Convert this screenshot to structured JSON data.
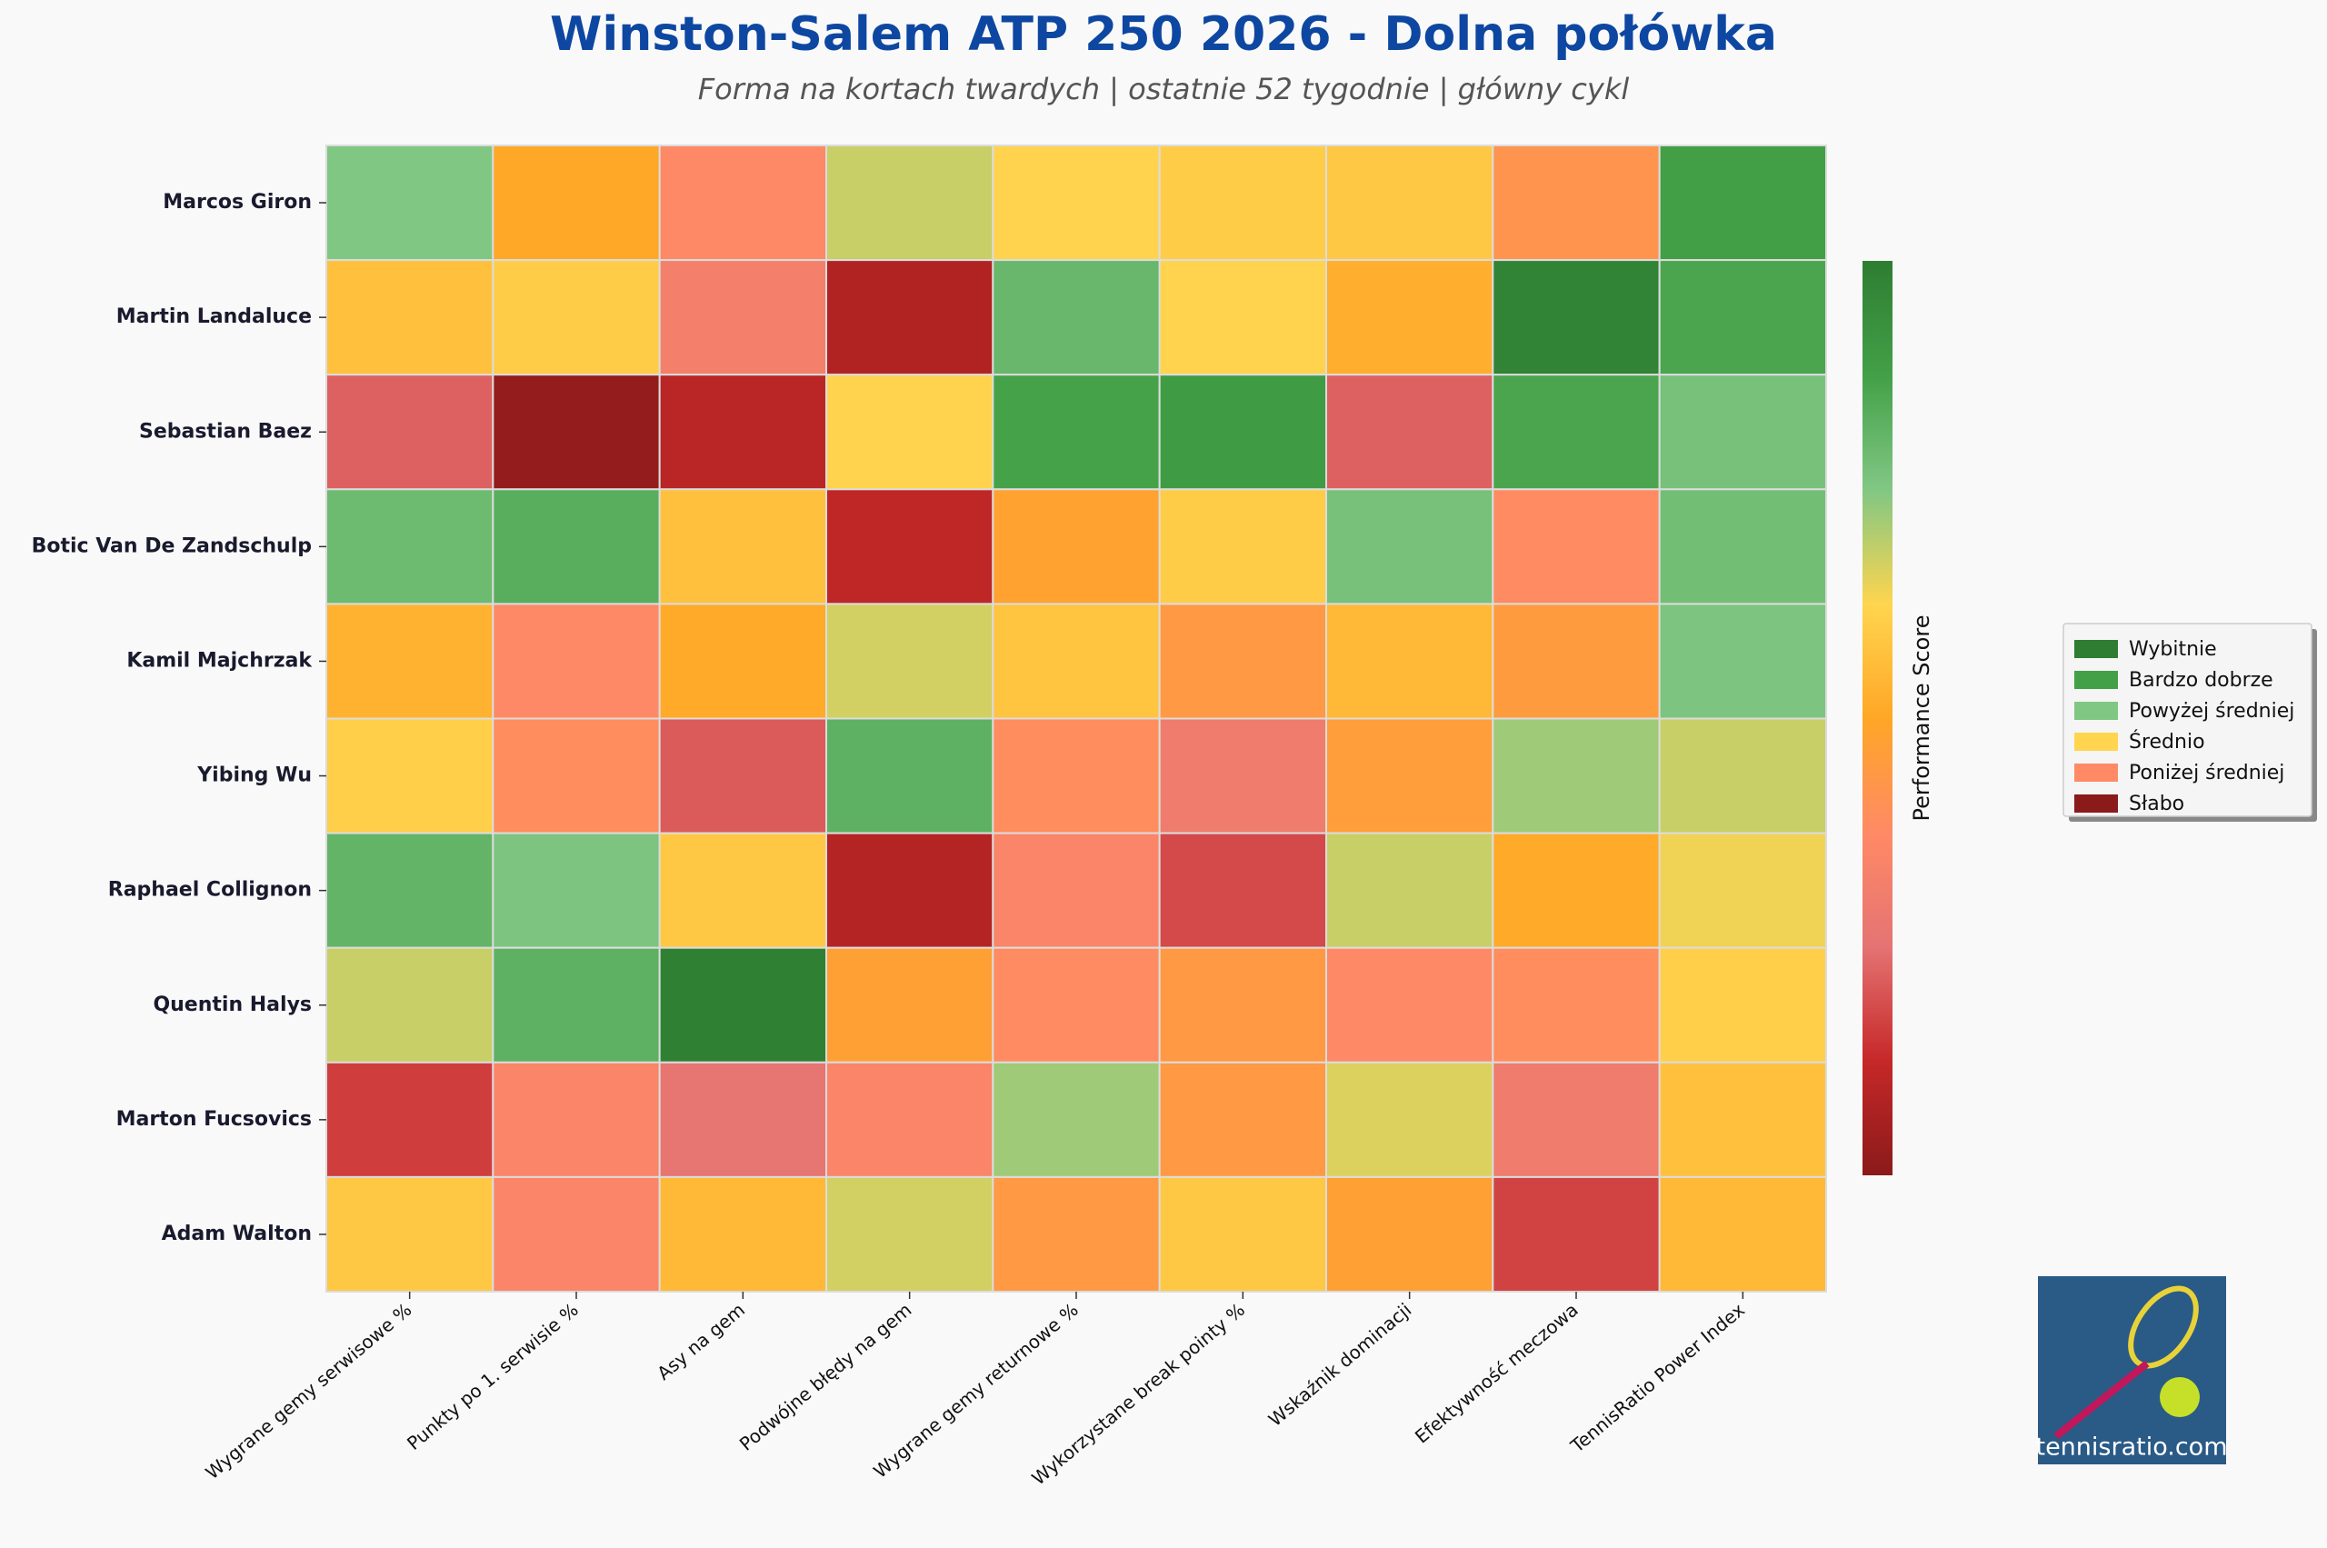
{
  "chart_data": {
    "type": "heatmap",
    "title": "Winston-Salem ATP 250 2026 - Dolna połówka",
    "subtitle": "Forma na kortach twardych | ostatnie 52 tygodnie | główny cykl",
    "colorbar_label": "Performance Score",
    "watermark": "tennisratio.com",
    "rows": [
      "Marcos Giron",
      "Martin Landaluce",
      "Sebastian Baez",
      "Botic Van De Zandschulp",
      "Kamil Majchrzak",
      "Yibing Wu",
      "Raphael Collignon",
      "Quentin Halys",
      "Marton Fucsovics",
      "Adam Walton"
    ],
    "columns": [
      "Wygrane gemy serwisowe %",
      "Punkty po 1. serwisie %",
      "Asy na gem",
      "Podwójne błędy na gem",
      "Wygrane gemy returnowe %",
      "Wykorzystane break pointy %",
      "Wskaźnik dominacji",
      "Efektywność meczowa",
      "TennisRatio Power Index"
    ],
    "values": [
      [
        75,
        50,
        37,
        68,
        62,
        60,
        59,
        42,
        88
      ],
      [
        57,
        60,
        32,
        8,
        80,
        62,
        52,
        98,
        86
      ],
      [
        22,
        2,
        10,
        62,
        87,
        89,
        22,
        86,
        77
      ],
      [
        79,
        83,
        57,
        11,
        48,
        60,
        77,
        38,
        78
      ],
      [
        53,
        37,
        51,
        67,
        58,
        44,
        55,
        45,
        76
      ],
      [
        61,
        39,
        21,
        82,
        39,
        30,
        46,
        72,
        68
      ],
      [
        81,
        76,
        59,
        9,
        35,
        18,
        68,
        51,
        64
      ],
      [
        68,
        82,
        99,
        47,
        38,
        44,
        37,
        39,
        61
      ],
      [
        16,
        35,
        26,
        35,
        72,
        44,
        66,
        30,
        57
      ],
      [
        59,
        35,
        55,
        67,
        44,
        59,
        47,
        17,
        55
      ]
    ],
    "color_range": [
      0,
      100
    ],
    "colorscale": [
      "#8b1a1a",
      "#c62828",
      "#e57373",
      "#ff8a65",
      "#ffa726",
      "#ffd54f",
      "#81c784",
      "#43a047",
      "#2e7d32"
    ],
    "legend": [
      {
        "label": "Wybitnie",
        "color": "#2e7d32"
      },
      {
        "label": "Bardzo dobrze",
        "color": "#43a047"
      },
      {
        "label": "Powyżej średniej",
        "color": "#81c784"
      },
      {
        "label": "Średnio",
        "color": "#ffd54f"
      },
      {
        "label": "Poniżej średniej",
        "color": "#ff8a65"
      },
      {
        "label": "Słabo",
        "color": "#8b1a1a"
      }
    ]
  }
}
